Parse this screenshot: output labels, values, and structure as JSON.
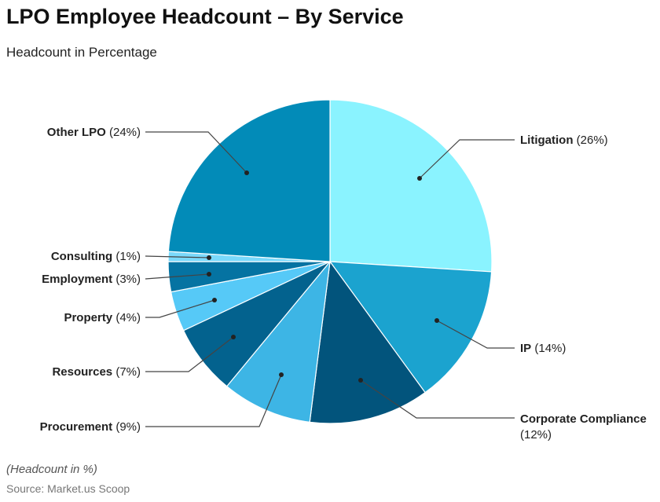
{
  "title": "LPO Employee Headcount – By Service",
  "subtitle": "Headcount in Percentage",
  "note": "(Headcount in %)",
  "source": "Source: Market.us Scoop",
  "chart_data": {
    "type": "pie",
    "title": "LPO Employee Headcount – By Service",
    "subtitle": "Headcount in Percentage",
    "slices": [
      {
        "label": "Litigation",
        "value": 26,
        "pct": "(26%)",
        "color": "#8af3ff"
      },
      {
        "label": "IP",
        "value": 14,
        "pct": "(14%)",
        "color": "#1ba3cf"
      },
      {
        "label": "Corporate Compliance",
        "value": 12,
        "pct": "(12%)",
        "color": "#02547c"
      },
      {
        "label": "Procurement",
        "value": 9,
        "pct": "(9%)",
        "color": "#3db5e5"
      },
      {
        "label": "Resources",
        "value": 7,
        "pct": "(7%)",
        "color": "#03628e"
      },
      {
        "label": "Property",
        "value": 4,
        "pct": "(4%)",
        "color": "#56c9f7"
      },
      {
        "label": "Employment",
        "value": 3,
        "pct": "(3%)",
        "color": "#0573a2"
      },
      {
        "label": "Consulting",
        "value": 1,
        "pct": "(1%)",
        "color": "#7ad9fb"
      },
      {
        "label": "Other LPO",
        "value": 24,
        "pct": "(24%)",
        "color": "#028bb8"
      }
    ]
  }
}
